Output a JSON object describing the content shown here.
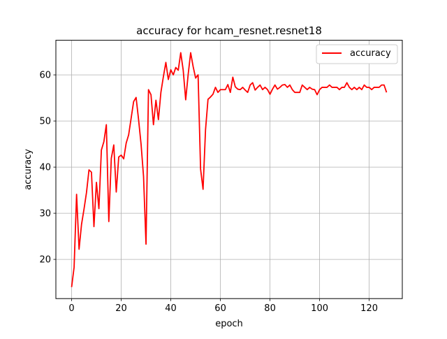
{
  "chart_data": {
    "type": "line",
    "title": "accuracy for hcam_resnet.resnet18",
    "xlabel": "epoch",
    "ylabel": "accuracy",
    "xlim": [
      -6.35,
      133.35
    ],
    "ylim": [
      11.5,
      67.5
    ],
    "xticks": [
      0,
      20,
      40,
      60,
      80,
      100,
      120
    ],
    "yticks": [
      20,
      30,
      40,
      50,
      60
    ],
    "grid": true,
    "legend": {
      "position": "top-right",
      "entries": [
        "accuracy"
      ]
    },
    "colors": {
      "series": "#ff0000",
      "grid": "#b0b0b0",
      "axes": "#000000"
    },
    "series": [
      {
        "name": "accuracy",
        "x": [
          0,
          1,
          2,
          3,
          4,
          5,
          6,
          7,
          8,
          9,
          10,
          11,
          12,
          13,
          14,
          15,
          16,
          17,
          18,
          19,
          20,
          21,
          22,
          23,
          24,
          25,
          26,
          27,
          28,
          29,
          30,
          31,
          32,
          33,
          34,
          35,
          36,
          37,
          38,
          39,
          40,
          41,
          42,
          43,
          44,
          45,
          46,
          47,
          48,
          49,
          50,
          51,
          52,
          53,
          54,
          55,
          56,
          57,
          58,
          59,
          60,
          61,
          62,
          63,
          64,
          65,
          66,
          67,
          68,
          69,
          70,
          71,
          72,
          73,
          74,
          75,
          76,
          77,
          78,
          79,
          80,
          81,
          82,
          83,
          84,
          85,
          86,
          87,
          88,
          89,
          90,
          91,
          92,
          93,
          94,
          95,
          96,
          97,
          98,
          99,
          100,
          101,
          102,
          103,
          104,
          105,
          106,
          107,
          108,
          109,
          110,
          111,
          112,
          113,
          114,
          115,
          116,
          117,
          118,
          119,
          120,
          121,
          122,
          123,
          124,
          125,
          126,
          127
        ],
        "values": [
          14.0,
          18.3,
          34.1,
          22.2,
          27.6,
          30.9,
          34.5,
          39.4,
          38.9,
          27.1,
          36.7,
          31.0,
          43.7,
          45.5,
          49.2,
          28.2,
          41.9,
          44.8,
          34.6,
          42.2,
          42.6,
          41.8,
          45.2,
          47.0,
          50.6,
          54.2,
          55.1,
          50.3,
          45.0,
          38.0,
          23.3,
          56.8,
          55.7,
          49.2,
          54.5,
          50.3,
          56.2,
          59.6,
          62.7,
          59.0,
          61.1,
          60.0,
          61.6,
          61.0,
          64.8,
          61.0,
          54.6,
          60.1,
          64.8,
          61.8,
          59.3,
          60.0,
          39.6,
          35.2,
          48.1,
          54.7,
          55.2,
          55.8,
          57.3,
          56.2,
          56.8,
          56.8,
          56.8,
          57.9,
          56.2,
          59.5,
          57.4,
          56.9,
          56.8,
          57.3,
          56.7,
          56.2,
          57.8,
          58.3,
          56.7,
          57.3,
          57.8,
          56.8,
          57.3,
          56.8,
          55.8,
          56.9,
          57.8,
          56.9,
          57.3,
          57.8,
          57.9,
          57.3,
          57.8,
          56.8,
          56.2,
          56.2,
          56.2,
          57.8,
          57.3,
          56.8,
          57.3,
          56.9,
          56.8,
          55.7,
          56.8,
          57.3,
          57.3,
          57.3,
          57.8,
          57.3,
          57.3,
          57.3,
          56.8,
          57.3,
          57.3,
          58.3,
          57.3,
          56.8,
          57.3,
          56.8,
          57.3,
          56.8,
          57.8,
          57.3,
          57.3,
          56.8,
          57.3,
          57.3,
          57.3,
          57.8,
          57.8,
          56.2
        ]
      }
    ]
  }
}
